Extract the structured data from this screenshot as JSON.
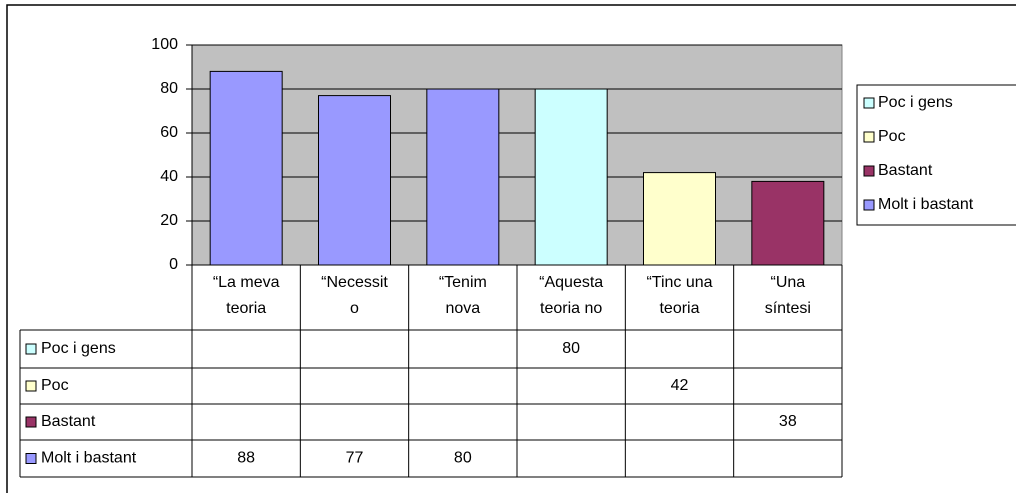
{
  "chart_data": {
    "type": "bar",
    "categories": [
      [
        "“La meva",
        "teoria"
      ],
      [
        "“Necessit",
        "o"
      ],
      [
        "“Tenim",
        "nova"
      ],
      [
        "“Aquesta",
        "teoria no"
      ],
      [
        "“Tinc una",
        "teoria"
      ],
      [
        "“Una",
        "síntesi"
      ]
    ],
    "series": [
      {
        "name": "Poc i gens",
        "color": "#ccffff",
        "values": [
          null,
          null,
          null,
          80,
          null,
          null
        ]
      },
      {
        "name": "Poc",
        "color": "#ffffcc",
        "values": [
          null,
          null,
          null,
          null,
          42,
          null
        ]
      },
      {
        "name": "Bastant",
        "color": "#993366",
        "values": [
          null,
          null,
          null,
          null,
          null,
          38
        ]
      },
      {
        "name": "Molt i bastant",
        "color": "#9999ff",
        "values": [
          88,
          77,
          80,
          null,
          null,
          null
        ]
      }
    ],
    "ylim": [
      0,
      100
    ],
    "yticks": [
      0,
      20,
      40,
      60,
      80,
      100
    ],
    "grid": true,
    "plot_background": "#c0c0c0"
  }
}
